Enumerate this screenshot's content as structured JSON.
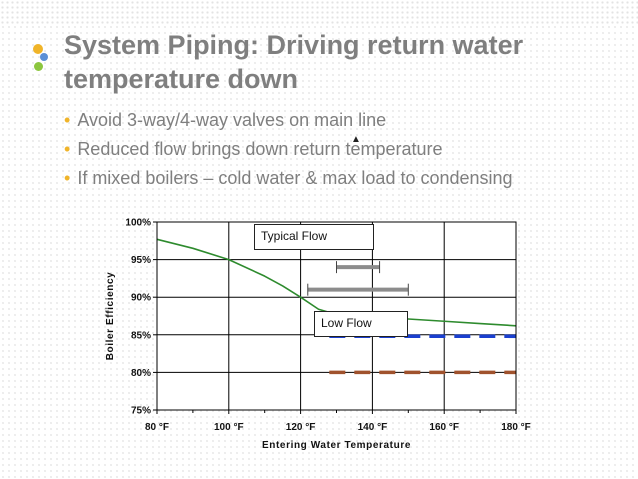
{
  "slide": {
    "title": "System Piping: Driving return water temperature down",
    "bullets": [
      "Avoid 3-way/4-way valves on main line",
      "Reduced flow brings down return temperature",
      "If mixed boilers – cold water & max load to condensing"
    ],
    "bullet_color": "#f0b429",
    "title_color": "#7f7f7f",
    "logo_dot_colors": [
      "#f0b429",
      "#5b8fd6",
      "#8cc63f"
    ]
  },
  "chart_data": {
    "type": "line",
    "title": "",
    "xlabel": "Entering Water Temperature",
    "ylabel": "Boiler Efficiency",
    "xlim": [
      80,
      180
    ],
    "ylim": [
      75,
      100
    ],
    "x_ticks": [
      "80 °F",
      "100 °F",
      "120 °F",
      "140 °F",
      "160 °F",
      "180 °F"
    ],
    "y_ticks": [
      "75%",
      "80%",
      "85%",
      "90%",
      "95%",
      "100%"
    ],
    "grid": "vertical and horizontal major lines",
    "series": [
      {
        "color": "#2e8b2e",
        "style": "solid",
        "x": [
          80,
          90,
          100,
          110,
          115,
          120,
          125,
          130,
          140,
          150,
          160,
          170,
          180
        ],
        "y": [
          97.7,
          96.5,
          95.0,
          92.8,
          91.5,
          90.0,
          88.4,
          87.7,
          87.4,
          87.1,
          86.8,
          86.5,
          86.2
        ]
      },
      {
        "color": "#1a3fcf",
        "style": "dashed",
        "x": [
          128,
          180
        ],
        "y": [
          84.8,
          84.8
        ]
      },
      {
        "color": "#a0522d",
        "style": "dashed",
        "x": [
          128,
          180
        ],
        "y": [
          80.0,
          80.0
        ]
      }
    ],
    "ranges": [
      {
        "color": "#8c8c8c",
        "x": [
          130,
          142
        ],
        "y": 94.0
      },
      {
        "color": "#8c8c8c",
        "x": [
          122,
          150
        ],
        "y": 91.0
      }
    ],
    "annotations": [
      "Typical Flow",
      "Low Flow"
    ]
  }
}
